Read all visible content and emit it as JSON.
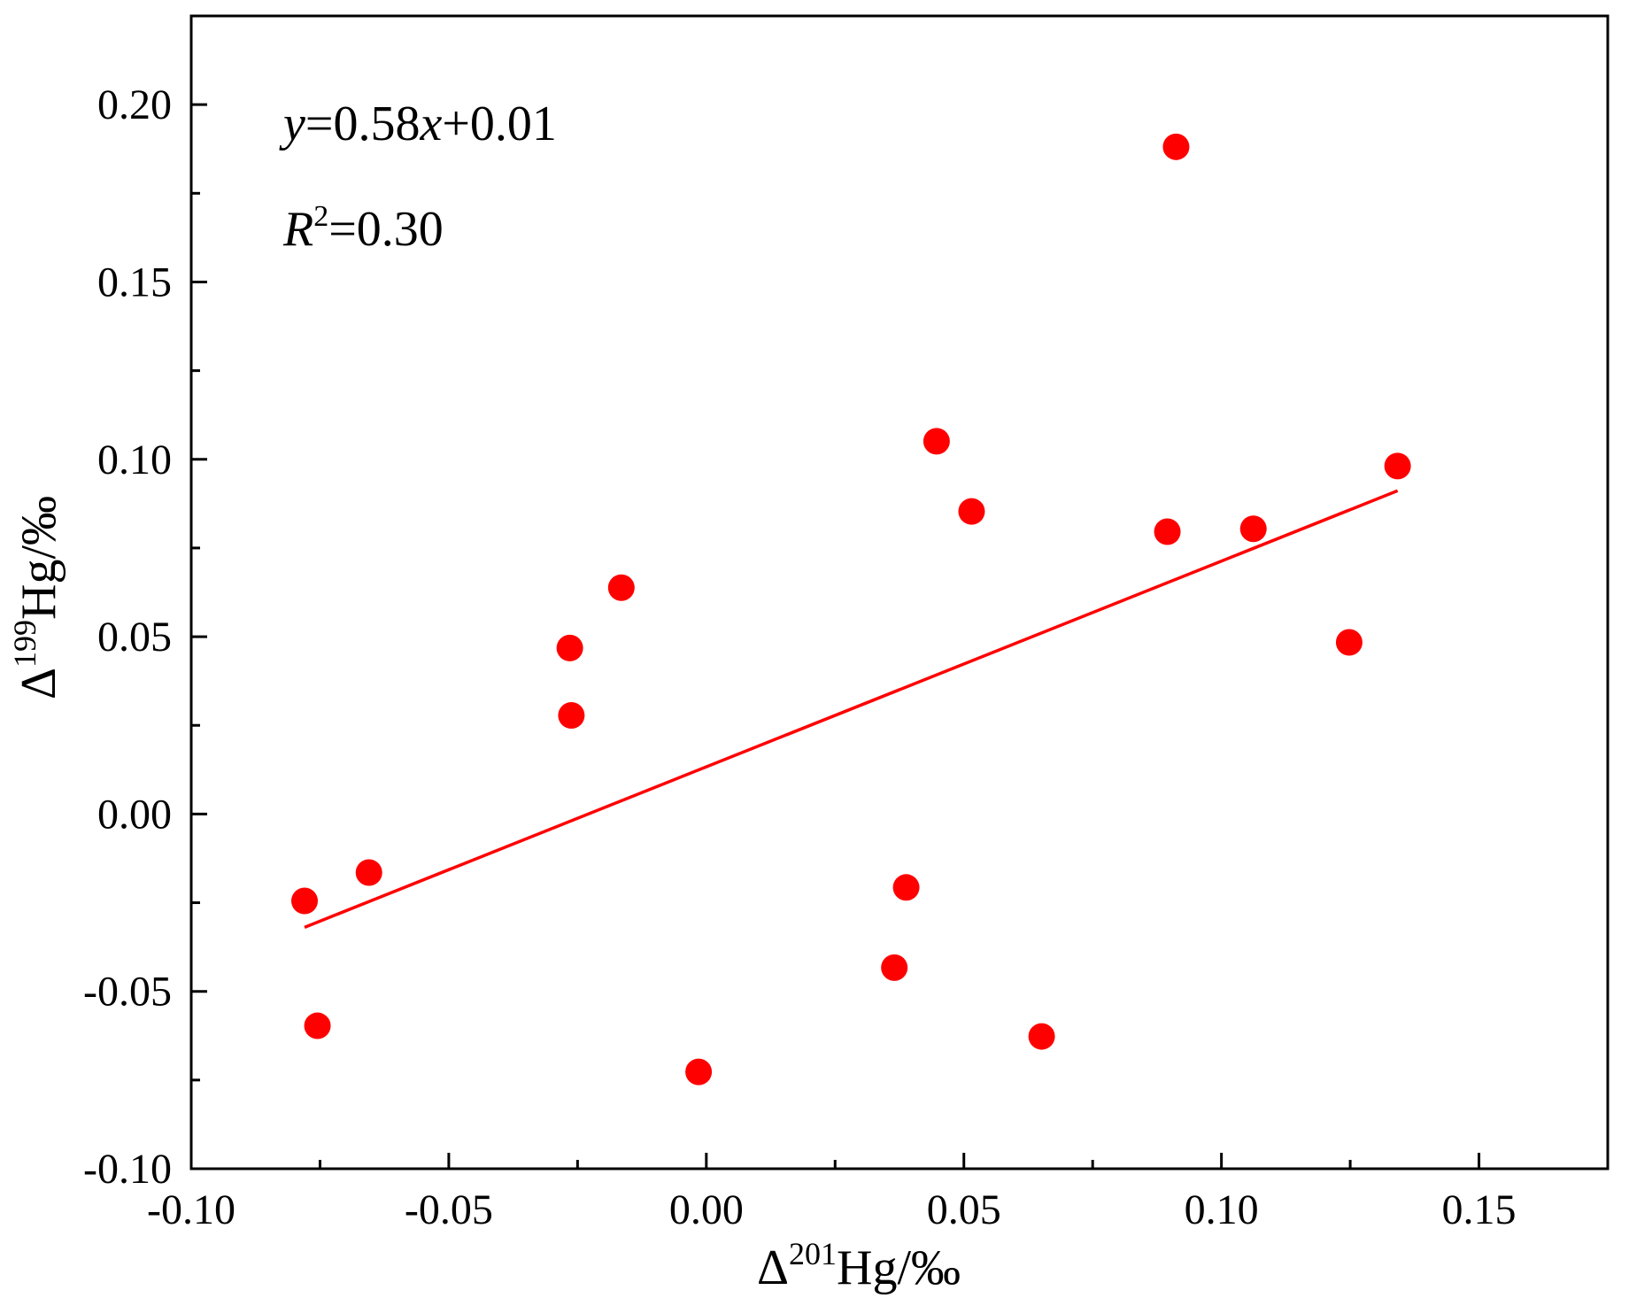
{
  "chart_data": {
    "type": "scatter",
    "xlabel": {
      "prefix": "Δ",
      "sup": "201",
      "suffix": "Hg/‰"
    },
    "ylabel": {
      "prefix": "Δ",
      "sup": "199",
      "suffix": "Hg/‰"
    },
    "xlim": [
      -0.1,
      0.175
    ],
    "ylim": [
      -0.1,
      0.225
    ],
    "x_ticks": [
      -0.1,
      -0.05,
      0.0,
      0.05,
      0.1,
      0.15
    ],
    "x_tick_labels": [
      "-0.10",
      "-0.05",
      "0.00",
      "0.05",
      "0.10",
      "0.15"
    ],
    "y_ticks": [
      -0.1,
      -0.05,
      0.0,
      0.05,
      0.1,
      0.15,
      0.2
    ],
    "y_tick_labels": [
      "-0.10",
      "-0.05",
      "0.00",
      "0.05",
      "0.10",
      "0.15",
      "0.20"
    ],
    "x_minor_ticks": [
      -0.075,
      -0.025,
      0.025,
      0.075,
      0.125
    ],
    "y_minor_ticks": [
      -0.075,
      -0.025,
      0.025,
      0.075,
      0.125,
      0.175
    ],
    "grid": false,
    "marker_color": "#ff0000",
    "line_color": "#ff0000",
    "points": [
      {
        "x": -0.078,
        "y": -0.0245
      },
      {
        "x": -0.0755,
        "y": -0.0597
      },
      {
        "x": -0.0655,
        "y": -0.0165
      },
      {
        "x": -0.0265,
        "y": 0.0468
      },
      {
        "x": -0.0262,
        "y": 0.0278
      },
      {
        "x": -0.0165,
        "y": 0.0638
      },
      {
        "x": -0.0015,
        "y": -0.0727
      },
      {
        "x": 0.0365,
        "y": -0.0433
      },
      {
        "x": 0.0388,
        "y": -0.0207
      },
      {
        "x": 0.0447,
        "y": 0.1051
      },
      {
        "x": 0.0515,
        "y": 0.0853
      },
      {
        "x": 0.0651,
        "y": -0.0627
      },
      {
        "x": 0.0895,
        "y": 0.0796
      },
      {
        "x": 0.0912,
        "y": 0.1881
      },
      {
        "x": 0.1062,
        "y": 0.0804
      },
      {
        "x": 0.1248,
        "y": 0.0484
      },
      {
        "x": 0.1342,
        "y": 0.0981
      }
    ],
    "fit_line": {
      "slope": 0.58,
      "intercept": 0.01,
      "x_range": [
        -0.078,
        0.1342
      ]
    },
    "equation": {
      "y": "y",
      "eq_rest": "=0.58",
      "x": "x",
      "tail": "+0.01"
    },
    "r2": {
      "r": "R",
      "sup": "2",
      "rest": "=0.30"
    }
  }
}
